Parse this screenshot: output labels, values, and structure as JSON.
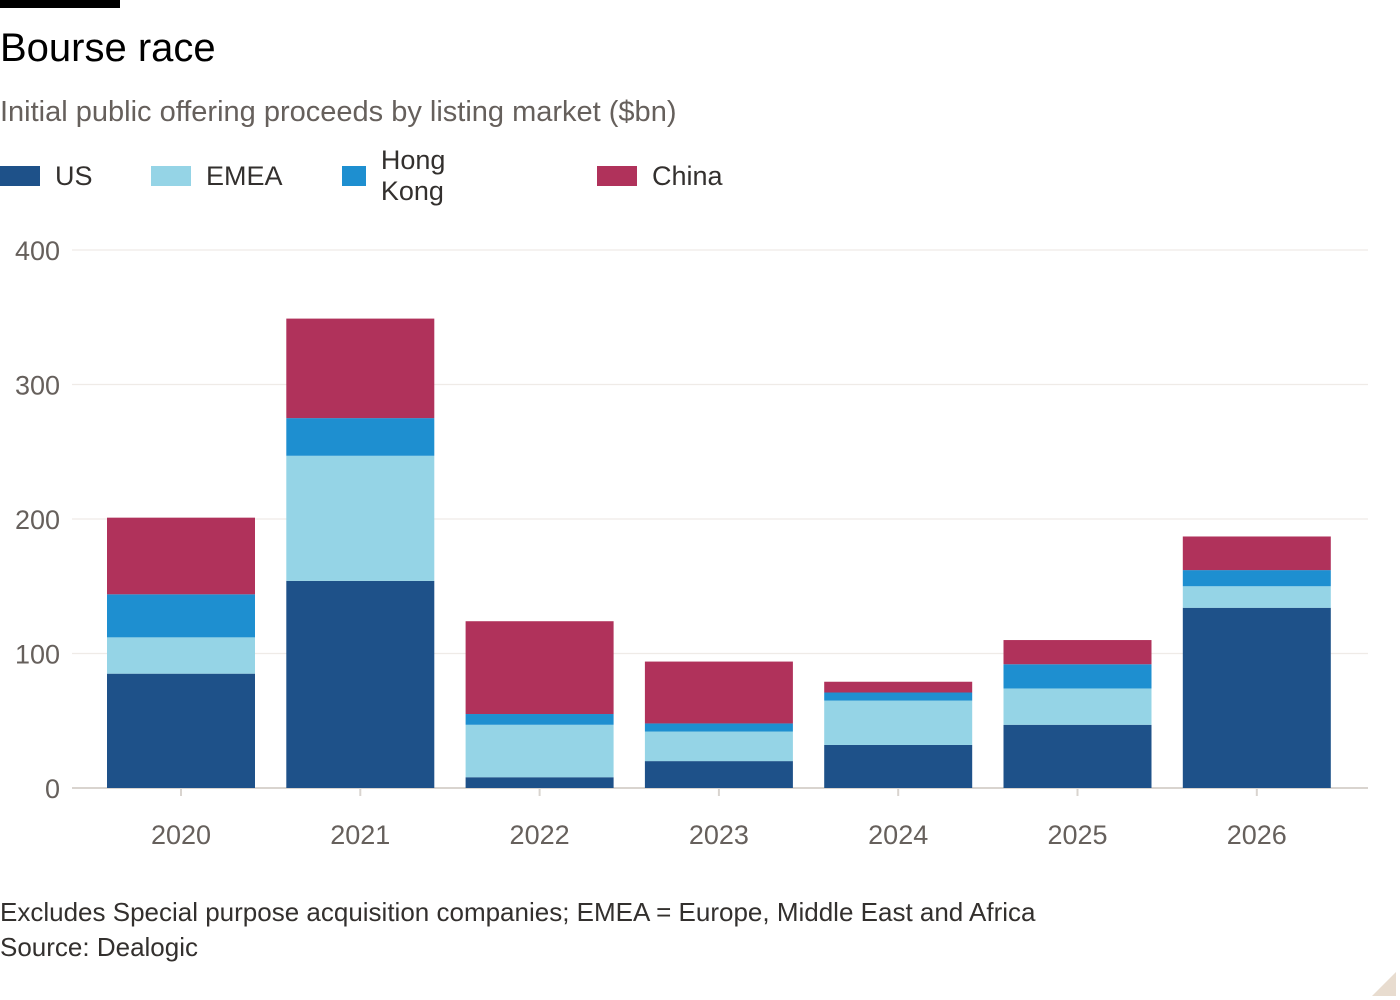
{
  "title": "Bourse race",
  "subtitle": "Initial public offering proceeds by listing market ($bn)",
  "footnote": "Excludes Special purpose acquisition companies; EMEA = Europe, Middle East and Africa",
  "source": "Source: Dealogic",
  "chart_data": {
    "type": "bar",
    "stacked": true,
    "categories": [
      "2020",
      "2021",
      "2022",
      "2023",
      "2024",
      "2025",
      "2026"
    ],
    "series": [
      {
        "name": "US",
        "color": "#1e5189",
        "values": [
          85,
          154,
          8,
          20,
          32,
          47,
          134
        ]
      },
      {
        "name": "EMEA",
        "color": "#95d4e6",
        "values": [
          27,
          93,
          39,
          22,
          33,
          27,
          16
        ]
      },
      {
        "name": "Hong Kong",
        "color": "#1e8fd0",
        "values": [
          32,
          28,
          8,
          6,
          6,
          18,
          12
        ]
      },
      {
        "name": "China",
        "color": "#b0325b",
        "values": [
          57,
          74,
          69,
          46,
          8,
          18,
          25
        ]
      }
    ],
    "ylim": [
      0,
      400
    ],
    "yticks": [
      0,
      100,
      200,
      300,
      400
    ],
    "xlabel": "",
    "ylabel": "",
    "grid": true,
    "legend": "top-left"
  }
}
